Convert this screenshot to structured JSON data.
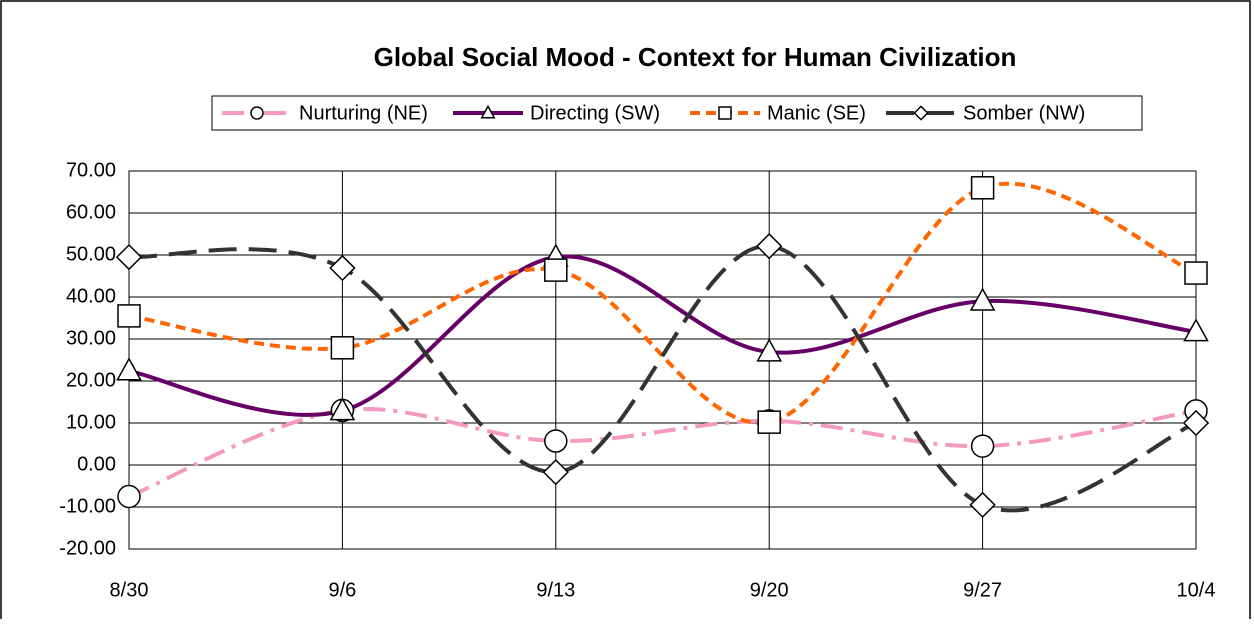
{
  "chart_data": {
    "type": "line",
    "title": "Global Social Mood - Context for Human Civilization",
    "categories": [
      "8/30",
      "9/6",
      "9/13",
      "9/20",
      "9/27",
      "10/4"
    ],
    "series": [
      {
        "name": "Nurturing (NE)",
        "color": "#f49ac1",
        "marker": "circle",
        "dash": "dashdot",
        "values": [
          -7.5,
          13,
          5.7,
          10.5,
          4.5,
          12.9
        ]
      },
      {
        "name": "Directing (SW)",
        "color": "#660066",
        "marker": "triangle",
        "dash": "solid",
        "values": [
          22.4,
          12.9,
          49.5,
          26.9,
          39,
          31.7
        ]
      },
      {
        "name": "Manic (SE)",
        "color": "#ff6600",
        "marker": "square",
        "dash": "dash",
        "values": [
          35.5,
          27.9,
          46.4,
          10.2,
          66,
          45.7
        ]
      },
      {
        "name": "Somber (NW)",
        "color": "#333333",
        "marker": "diamond",
        "dash": "longdash",
        "values": [
          49.5,
          46.9,
          -1.7,
          52.1,
          -9.5,
          10
        ]
      }
    ],
    "ylim": [
      -20,
      70
    ],
    "yticks": [
      {
        "value": -20,
        "label": "-20.00"
      },
      {
        "value": -10,
        "label": "-10.00"
      },
      {
        "value": 0,
        "label": "0.00"
      },
      {
        "value": 10,
        "label": "10.00"
      },
      {
        "value": 20,
        "label": "20.00"
      },
      {
        "value": 30,
        "label": "30.00"
      },
      {
        "value": 40,
        "label": "40.00"
      },
      {
        "value": 50,
        "label": "50.00"
      },
      {
        "value": 60,
        "label": "60.00"
      },
      {
        "value": 70,
        "label": "70.00"
      }
    ],
    "grid": true,
    "smooth": true
  }
}
